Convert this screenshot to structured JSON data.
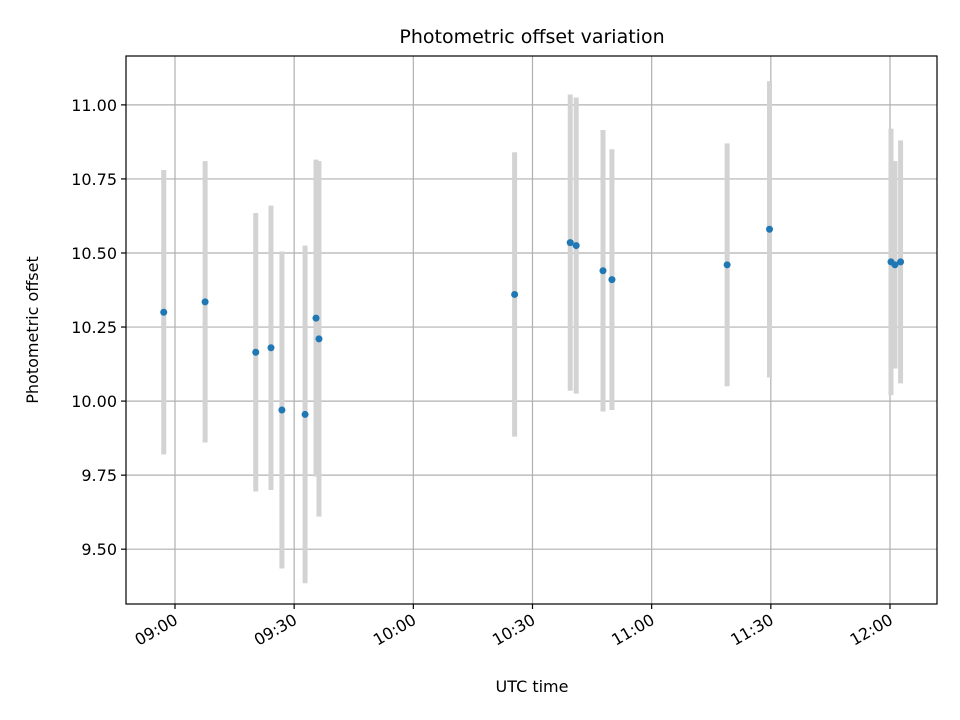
{
  "chart_data": {
    "type": "scatter",
    "title": "Photometric offset variation",
    "xlabel": "UTC time",
    "ylabel": "Photometric offset",
    "grid": true,
    "xlim": [
      "08:47:40",
      "12:11:50"
    ],
    "ylim": [
      9.315,
      11.165
    ],
    "xticks": [
      "09:00",
      "09:30",
      "10:00",
      "10:30",
      "11:00",
      "11:30",
      "12:00"
    ],
    "yticks": [
      "9.50",
      "9.75",
      "10.00",
      "10.25",
      "10.50",
      "10.75",
      "11.00"
    ],
    "marker_color": "#1f77b4",
    "errorbar_color": "#d3d3d3",
    "grid_color": "#b0b0b0",
    "points": [
      {
        "x": "08:57:10",
        "y": 10.3,
        "err": 0.48
      },
      {
        "x": "09:07:35",
        "y": 10.335,
        "err": 0.475
      },
      {
        "x": "09:20:20",
        "y": 10.165,
        "err": 0.47
      },
      {
        "x": "09:24:10",
        "y": 10.18,
        "err": 0.48
      },
      {
        "x": "09:26:55",
        "y": 9.97,
        "err": 0.535
      },
      {
        "x": "09:32:45",
        "y": 9.955,
        "err": 0.57
      },
      {
        "x": "09:35:30",
        "y": 10.28,
        "err": 0.535
      },
      {
        "x": "09:36:15",
        "y": 10.21,
        "err": 0.6
      },
      {
        "x": "10:25:30",
        "y": 10.36,
        "err": 0.48
      },
      {
        "x": "10:39:30",
        "y": 10.535,
        "err": 0.5
      },
      {
        "x": "10:41:00",
        "y": 10.525,
        "err": 0.5
      },
      {
        "x": "10:47:45",
        "y": 10.44,
        "err": 0.475
      },
      {
        "x": "10:50:00",
        "y": 10.41,
        "err": 0.44
      },
      {
        "x": "11:19:00",
        "y": 10.46,
        "err": 0.41
      },
      {
        "x": "11:29:40",
        "y": 10.58,
        "err": 0.5
      },
      {
        "x": "12:00:15",
        "y": 10.47,
        "err": 0.45
      },
      {
        "x": "12:01:15",
        "y": 10.46,
        "err": 0.35
      },
      {
        "x": "12:02:40",
        "y": 10.47,
        "err": 0.41
      }
    ]
  }
}
